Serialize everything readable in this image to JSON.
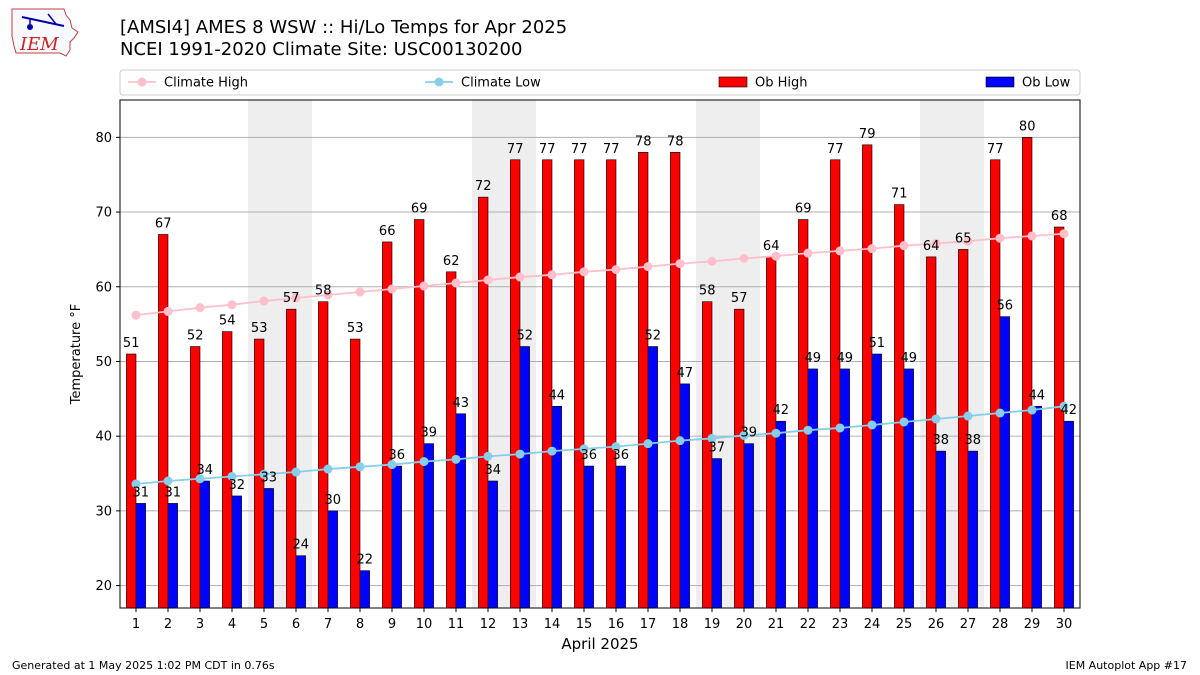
{
  "title_line1": "[AMSI4] AMES 8 WSW :: Hi/Lo Temps for Apr 2025",
  "title_line2": "NCEI 1991-2020 Climate Site: USC00130200",
  "logo_text": "IEM",
  "footer_left": "Generated at 1 May 2025 1:02 PM CDT in 0.76s",
  "footer_right": "IEM Autoplot App #17",
  "colors": {
    "ob_high": "#ff0000",
    "ob_low": "#0000ff",
    "climate_high": "#ffc0cb",
    "climate_low": "#87ceeb",
    "weekend_shade": "#eeeeee",
    "grid": "#b0b0b0"
  },
  "chart_data": {
    "type": "bar",
    "title": "[AMSI4] AMES 8 WSW :: Hi/Lo Temps for Apr 2025",
    "subtitle": "NCEI 1991-2020 Climate Site: USC00130200",
    "xlabel": "April 2025",
    "ylabel": "Temperature °F",
    "ylim": [
      17,
      85
    ],
    "yticks": [
      20,
      30,
      40,
      50,
      60,
      70,
      80
    ],
    "grid": "y",
    "legend_placement": "top",
    "categories": [
      1,
      2,
      3,
      4,
      5,
      6,
      7,
      8,
      9,
      10,
      11,
      12,
      13,
      14,
      15,
      16,
      17,
      18,
      19,
      20,
      21,
      22,
      23,
      24,
      25,
      26,
      27,
      28,
      29,
      30
    ],
    "shaded_weekend_days": [
      [
        5,
        6
      ],
      [
        12,
        13
      ],
      [
        19,
        20
      ],
      [
        26,
        27
      ]
    ],
    "series": [
      {
        "name": "Ob High",
        "kind": "bar",
        "color": "#ff0000",
        "values": [
          51,
          67,
          52,
          54,
          53,
          57,
          58,
          53,
          66,
          69,
          62,
          72,
          77,
          77,
          77,
          77,
          78,
          78,
          58,
          57,
          64,
          69,
          77,
          79,
          71,
          64,
          65,
          77,
          80,
          68
        ]
      },
      {
        "name": "Ob Low",
        "kind": "bar",
        "color": "#0000ff",
        "values": [
          31,
          31,
          34,
          32,
          33,
          24,
          30,
          22,
          36,
          39,
          43,
          34,
          52,
          44,
          36,
          36,
          52,
          47,
          37,
          39,
          42,
          49,
          49,
          51,
          49,
          38,
          38,
          56,
          44,
          42
        ]
      },
      {
        "name": "Climate High",
        "kind": "line",
        "color": "#ffc0cb",
        "values": [
          56.2,
          56.7,
          57.2,
          57.6,
          58.1,
          58.5,
          58.9,
          59.3,
          59.7,
          60.1,
          60.5,
          60.9,
          61.3,
          61.6,
          62.0,
          62.3,
          62.7,
          63.1,
          63.4,
          63.8,
          64.1,
          64.5,
          64.8,
          65.1,
          65.5,
          65.8,
          66.1,
          66.5,
          66.8,
          67.1
        ]
      },
      {
        "name": "Climate Low",
        "kind": "line",
        "color": "#87ceeb",
        "values": [
          33.6,
          34.0,
          34.3,
          34.6,
          34.9,
          35.2,
          35.6,
          35.9,
          36.2,
          36.6,
          36.9,
          37.3,
          37.6,
          38.0,
          38.3,
          38.6,
          39.0,
          39.4,
          39.7,
          40.1,
          40.4,
          40.8,
          41.1,
          41.5,
          41.9,
          42.3,
          42.7,
          43.1,
          43.5,
          44.0
        ]
      }
    ]
  }
}
